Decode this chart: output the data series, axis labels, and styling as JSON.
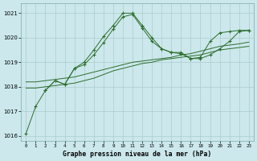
{
  "title": "Graphe pression niveau de la mer (hPa)",
  "background_color": "#cce8ec",
  "grid_color": "#aacccc",
  "line_color": "#2d6e2d",
  "xlim": [
    -0.5,
    23.5
  ],
  "ylim": [
    1015.8,
    1021.4
  ],
  "yticks": [
    1016,
    1017,
    1018,
    1019,
    1020,
    1021
  ],
  "xticks": [
    0,
    1,
    2,
    3,
    4,
    5,
    6,
    7,
    8,
    9,
    10,
    11,
    12,
    13,
    14,
    15,
    16,
    17,
    18,
    19,
    20,
    21,
    22,
    23
  ],
  "series": [
    {
      "x": [
        0,
        1,
        2,
        3,
        4,
        5,
        6,
        7,
        8,
        9,
        10,
        11,
        12,
        13,
        14,
        15,
        16,
        17,
        18,
        19,
        20,
        21,
        22,
        23
      ],
      "y": [
        1016.1,
        1017.2,
        1017.85,
        1018.25,
        1018.1,
        1018.75,
        1019.0,
        1019.5,
        1020.05,
        1020.5,
        1021.0,
        1021.0,
        1020.5,
        1020.0,
        1019.55,
        1019.4,
        1019.4,
        1019.15,
        1019.2,
        1019.85,
        1020.2,
        1020.25,
        1020.3,
        1020.3
      ],
      "linestyle": "-",
      "marker": true
    },
    {
      "x": [
        2,
        3,
        4,
        5,
        6,
        7,
        8,
        9,
        10,
        11,
        12,
        13,
        14,
        15,
        16,
        17,
        18,
        19,
        20,
        21,
        22,
        23
      ],
      "y": [
        1017.85,
        1018.25,
        1018.1,
        1018.75,
        1018.9,
        1019.3,
        1019.8,
        1020.35,
        1020.85,
        1020.95,
        1020.4,
        1019.85,
        1019.55,
        1019.4,
        1019.35,
        1019.15,
        1019.15,
        1019.3,
        1019.55,
        1019.85,
        1020.25,
        1020.3
      ],
      "linestyle": "-",
      "marker": true
    },
    {
      "x": [
        0,
        1,
        2,
        3,
        4,
        5,
        6,
        7,
        8,
        9,
        10,
        11,
        12,
        13,
        14,
        15,
        16,
        17,
        18,
        19,
        20,
        21,
        22,
        23
      ],
      "y": [
        1017.95,
        1017.95,
        1018.0,
        1018.05,
        1018.1,
        1018.15,
        1018.25,
        1018.35,
        1018.5,
        1018.65,
        1018.75,
        1018.85,
        1018.95,
        1019.0,
        1019.1,
        1019.15,
        1019.2,
        1019.25,
        1019.3,
        1019.4,
        1019.5,
        1019.55,
        1019.6,
        1019.65
      ],
      "linestyle": "-",
      "marker": false
    },
    {
      "x": [
        0,
        1,
        2,
        3,
        4,
        5,
        6,
        7,
        8,
        9,
        10,
        11,
        12,
        13,
        14,
        15,
        16,
        17,
        18,
        19,
        20,
        21,
        22,
        23
      ],
      "y": [
        1018.2,
        1018.2,
        1018.25,
        1018.3,
        1018.35,
        1018.4,
        1018.5,
        1018.6,
        1018.7,
        1018.8,
        1018.9,
        1019.0,
        1019.05,
        1019.1,
        1019.15,
        1019.2,
        1019.3,
        1019.35,
        1019.45,
        1019.55,
        1019.65,
        1019.7,
        1019.75,
        1019.82
      ],
      "linestyle": "-",
      "marker": false
    }
  ]
}
